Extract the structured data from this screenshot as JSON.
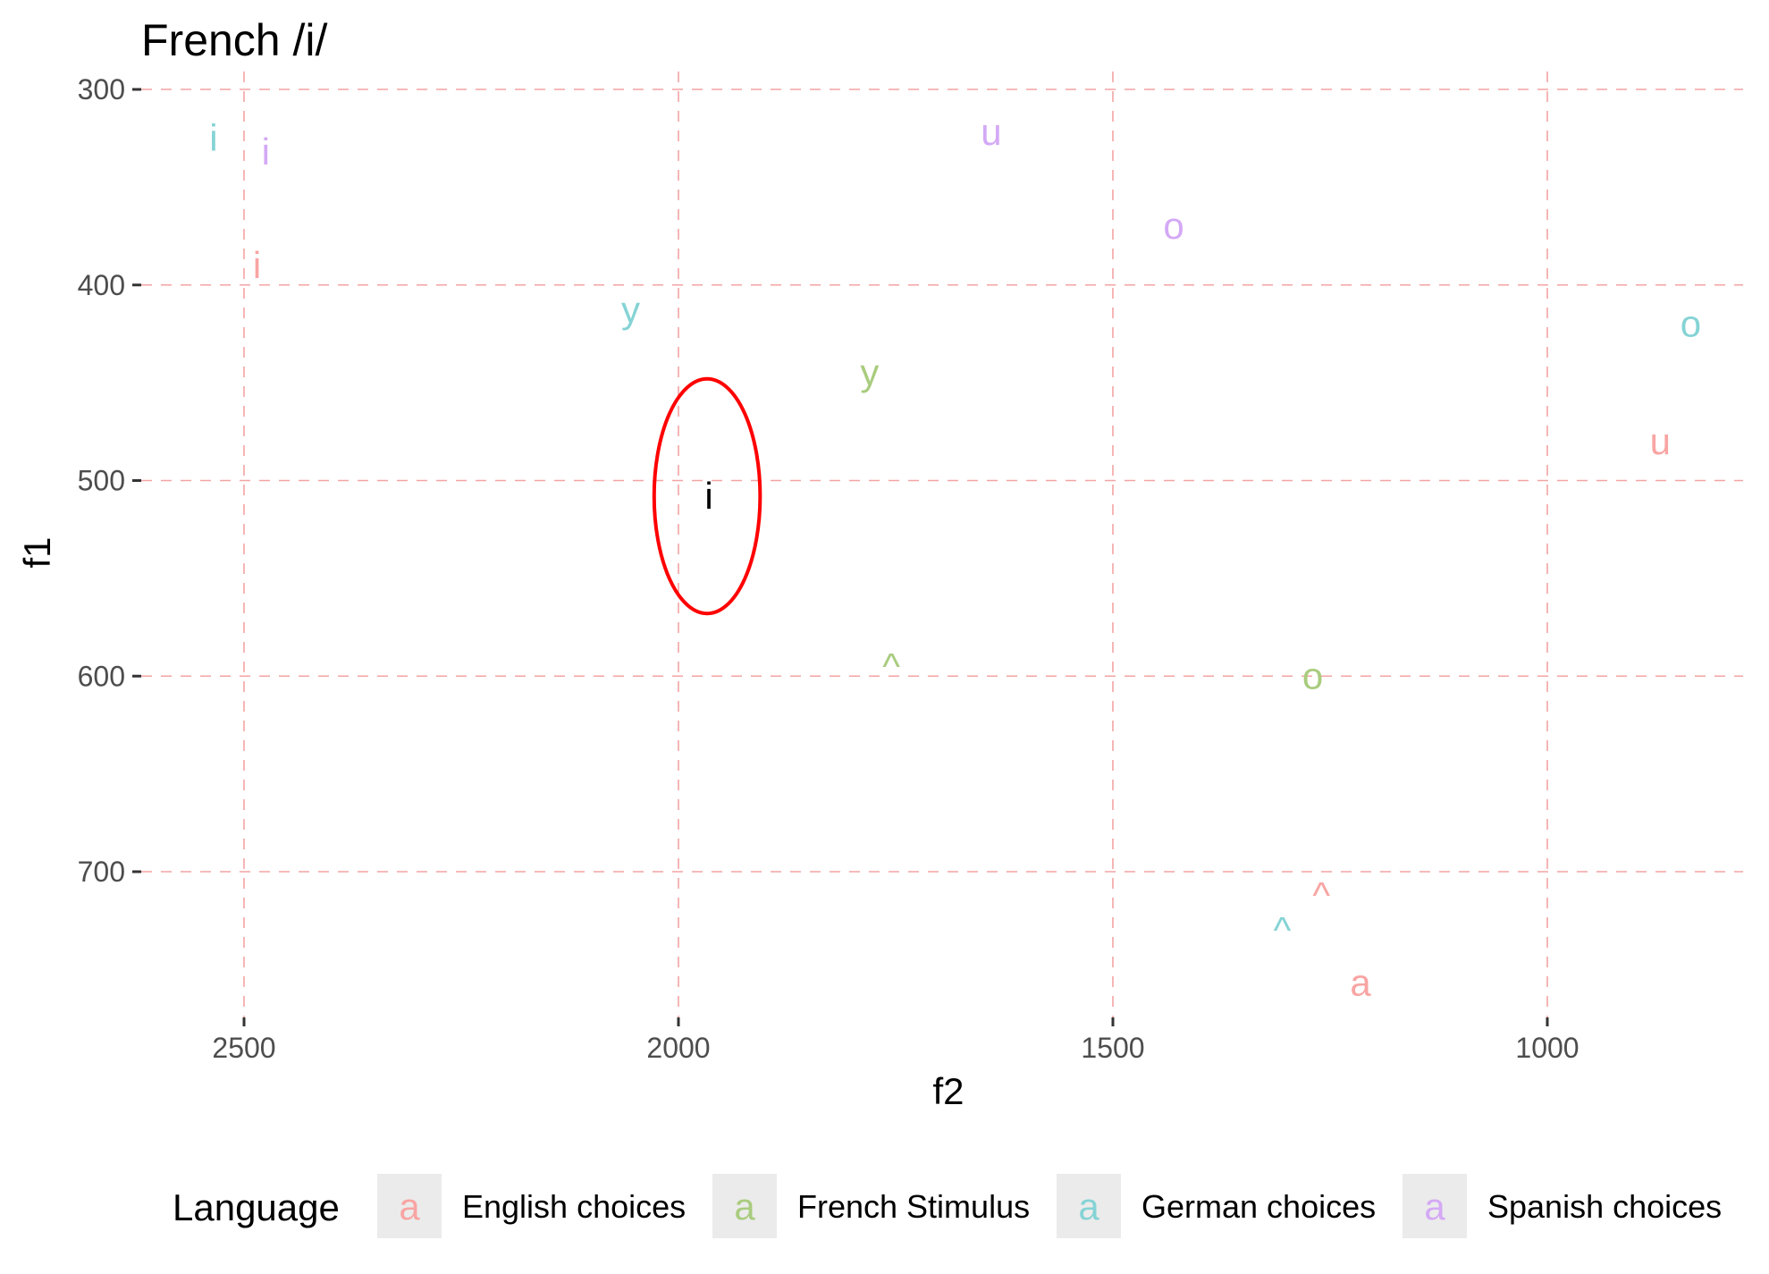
{
  "chart_data": {
    "type": "scatter",
    "title": "French /i/",
    "xlabel": "f2",
    "ylabel": "f1",
    "x_reversed": true,
    "y_reversed": true,
    "xlim": [
      2550,
      780
    ],
    "ylim": [
      290,
      775
    ],
    "x_ticks": [
      2500,
      2000,
      1500,
      1000
    ],
    "y_ticks": [
      300,
      400,
      500,
      600,
      700
    ],
    "grid": true,
    "legend_title": "Language",
    "legend_position": "bottom",
    "legend_key_glyph": "a",
    "colors": {
      "English choices": "#F8A5A3",
      "French Stimulus": "#A9CC7E",
      "German choices": "#85D3D5",
      "Spanish choices": "#D4A9F5",
      "grid": "#F4A3A3",
      "highlight": "#FF0000",
      "target": "#000000"
    },
    "series": [
      {
        "name": "English choices",
        "points": [
          {
            "label": "i",
            "f2": 2485,
            "f1": 390
          },
          {
            "label": "u",
            "f2": 870,
            "f1": 480
          },
          {
            "label": "^",
            "f2": 1260,
            "f1": 712
          },
          {
            "label": "a",
            "f2": 1215,
            "f1": 757
          }
        ]
      },
      {
        "name": "French Stimulus",
        "points": [
          {
            "label": "y",
            "f2": 1780,
            "f1": 445
          },
          {
            "label": "^",
            "f2": 1755,
            "f1": 595
          },
          {
            "label": "o",
            "f2": 1270,
            "f1": 600
          }
        ]
      },
      {
        "name": "German choices",
        "points": [
          {
            "label": "i",
            "f2": 2535,
            "f1": 325
          },
          {
            "label": "y",
            "f2": 2055,
            "f1": 413
          },
          {
            "label": "o",
            "f2": 835,
            "f1": 420
          },
          {
            "label": "^",
            "f2": 1305,
            "f1": 730
          }
        ]
      },
      {
        "name": "Spanish choices",
        "points": [
          {
            "label": "i",
            "f2": 2475,
            "f1": 332
          },
          {
            "label": "u",
            "f2": 1640,
            "f1": 322
          },
          {
            "label": "o",
            "f2": 1430,
            "f1": 370
          }
        ]
      }
    ],
    "target": {
      "label": "i",
      "f2": 1965,
      "f1": 508
    },
    "ellipse": {
      "center_f2": 1967,
      "center_f1": 508,
      "half_width_f2": 61,
      "half_height_f1": 60
    }
  }
}
